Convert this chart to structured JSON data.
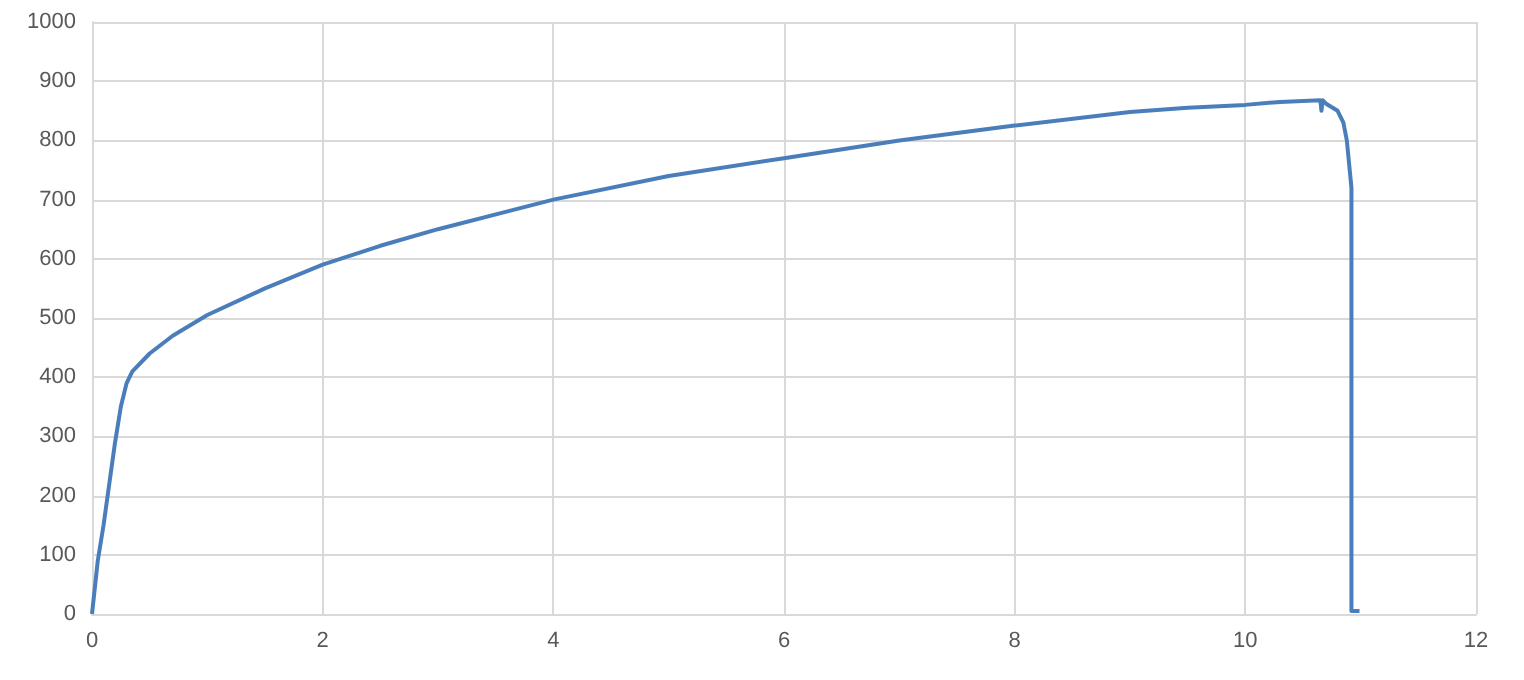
{
  "chart_data": {
    "type": "line",
    "x": [
      0,
      0.05,
      0.1,
      0.15,
      0.2,
      0.25,
      0.3,
      0.35,
      0.5,
      0.7,
      1,
      1.5,
      2,
      2.5,
      3,
      4,
      5,
      6,
      7,
      8,
      9,
      9.5,
      10,
      10.3,
      10.65,
      10.66,
      10.67,
      10.7,
      10.8,
      10.85,
      10.88,
      10.9,
      10.92,
      10.92,
      10.99
    ],
    "series": [
      {
        "color": "#4a7ebb",
        "values": [
          0,
          90,
          150,
          220,
          290,
          350,
          390,
          410,
          440,
          470,
          505,
          550,
          590,
          622,
          650,
          700,
          740,
          770,
          800,
          825,
          848,
          855,
          860,
          865,
          868,
          850,
          868,
          862,
          850,
          830,
          800,
          760,
          720,
          5,
          5
        ]
      }
    ],
    "xlim": [
      0,
      12
    ],
    "xticks": [
      0,
      2,
      4,
      6,
      8,
      10,
      12
    ],
    "ylim": [
      0,
      1000
    ],
    "yticks": [
      0,
      100,
      200,
      300,
      400,
      500,
      600,
      700,
      800,
      900,
      1000
    ],
    "grid": true,
    "marker": "none",
    "line_style": "solid"
  }
}
